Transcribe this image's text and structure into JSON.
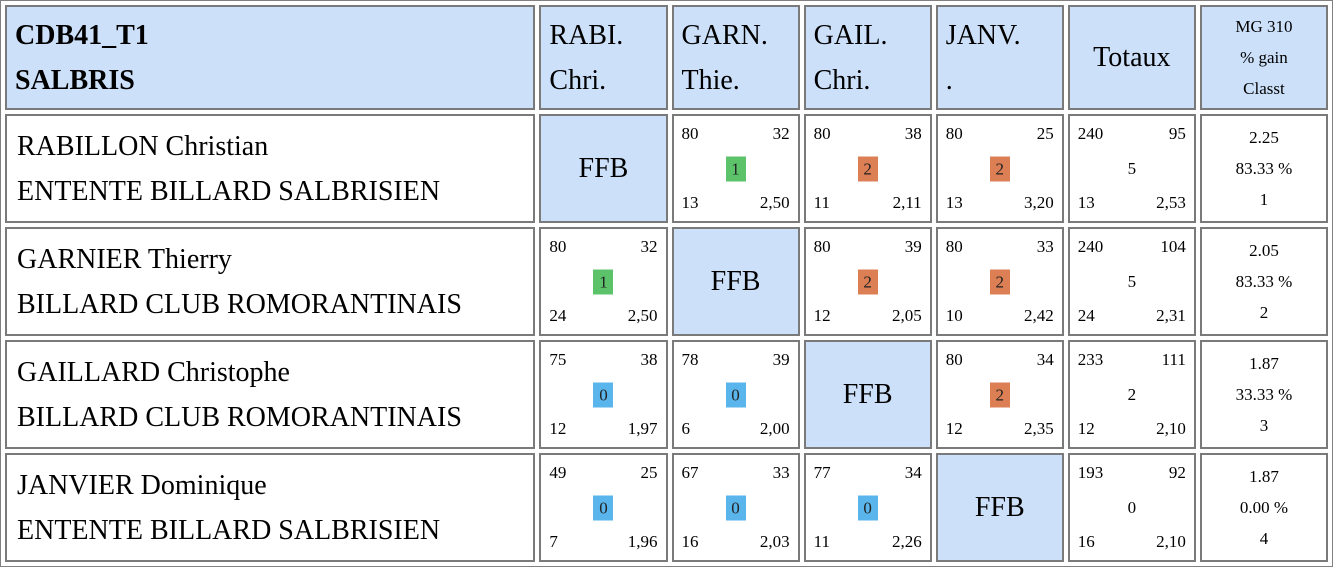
{
  "header": {
    "title_line1": "CDB41_T1",
    "title_line2": "SALBRIS",
    "players": [
      {
        "line1": "RABI.",
        "line2": "Chri."
      },
      {
        "line1": "GARN.",
        "line2": "Thie."
      },
      {
        "line1": "GAIL.",
        "line2": "Chri."
      },
      {
        "line1": "JANV.",
        "line2": "."
      }
    ],
    "totals_label": "Totaux",
    "mg_line1": "MG 310",
    "mg_line2": "% gain",
    "mg_line3": "Classt"
  },
  "ffb_label": "FFB",
  "colors": {
    "win": "#5cc36b",
    "draw": "#dd7f55",
    "loss": "#5ab5ec",
    "header_bg": "#cce0fa"
  },
  "rows": [
    {
      "name": "RABILLON Christian",
      "club": "ENTENTE BILLARD SALBRISIEN",
      "matches": [
        null,
        {
          "points": "80",
          "innings": "32",
          "reprises": "13",
          "avg": "2,50",
          "result": "1",
          "color": "#5cc36b"
        },
        {
          "points": "80",
          "innings": "38",
          "reprises": "11",
          "avg": "2,11",
          "result": "2",
          "color": "#dd7f55"
        },
        {
          "points": "80",
          "innings": "25",
          "reprises": "13",
          "avg": "3,20",
          "result": "2",
          "color": "#dd7f55"
        }
      ],
      "totals": {
        "points": "240",
        "innings": "95",
        "mid": "5",
        "reprises": "13",
        "avg": "2,53"
      },
      "mg": {
        "avg": "2.25",
        "pct": "83.33 %",
        "rank": "1"
      }
    },
    {
      "name": "GARNIER Thierry",
      "club": "BILLARD CLUB ROMORANTINAIS",
      "matches": [
        {
          "points": "80",
          "innings": "32",
          "reprises": "24",
          "avg": "2,50",
          "result": "1",
          "color": "#5cc36b"
        },
        null,
        {
          "points": "80",
          "innings": "39",
          "reprises": "12",
          "avg": "2,05",
          "result": "2",
          "color": "#dd7f55"
        },
        {
          "points": "80",
          "innings": "33",
          "reprises": "10",
          "avg": "2,42",
          "result": "2",
          "color": "#dd7f55"
        }
      ],
      "totals": {
        "points": "240",
        "innings": "104",
        "mid": "5",
        "reprises": "24",
        "avg": "2,31"
      },
      "mg": {
        "avg": "2.05",
        "pct": "83.33 %",
        "rank": "2"
      }
    },
    {
      "name": "GAILLARD Christophe",
      "club": "BILLARD CLUB ROMORANTINAIS",
      "matches": [
        {
          "points": "75",
          "innings": "38",
          "reprises": "12",
          "avg": "1,97",
          "result": "0",
          "color": "#5ab5ec"
        },
        {
          "points": "78",
          "innings": "39",
          "reprises": "6",
          "avg": "2,00",
          "result": "0",
          "color": "#5ab5ec"
        },
        null,
        {
          "points": "80",
          "innings": "34",
          "reprises": "12",
          "avg": "2,35",
          "result": "2",
          "color": "#dd7f55"
        }
      ],
      "totals": {
        "points": "233",
        "innings": "111",
        "mid": "2",
        "reprises": "12",
        "avg": "2,10"
      },
      "mg": {
        "avg": "1.87",
        "pct": "33.33 %",
        "rank": "3"
      }
    },
    {
      "name": "JANVIER Dominique",
      "club": "ENTENTE BILLARD SALBRISIEN",
      "matches": [
        {
          "points": "49",
          "innings": "25",
          "reprises": "7",
          "avg": "1,96",
          "result": "0",
          "color": "#5ab5ec"
        },
        {
          "points": "67",
          "innings": "33",
          "reprises": "16",
          "avg": "2,03",
          "result": "0",
          "color": "#5ab5ec"
        },
        {
          "points": "77",
          "innings": "34",
          "reprises": "11",
          "avg": "2,26",
          "result": "0",
          "color": "#5ab5ec"
        },
        null
      ],
      "totals": {
        "points": "193",
        "innings": "92",
        "mid": "0",
        "reprises": "16",
        "avg": "2,10"
      },
      "mg": {
        "avg": "1.87",
        "pct": "0.00 %",
        "rank": "4"
      }
    }
  ]
}
